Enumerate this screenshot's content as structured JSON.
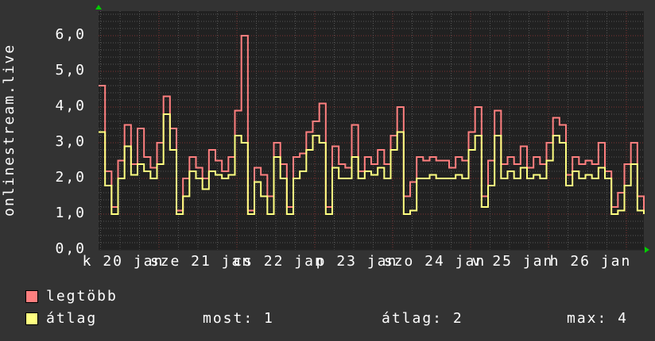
{
  "chart_data": {
    "type": "line",
    "title": "",
    "ylabel": "onlinestream.live",
    "ylim": [
      0,
      6.7
    ],
    "y_ticks": [
      "0,0",
      "1,0",
      "2,0",
      "3,0",
      "4,0",
      "5,0",
      "6,0"
    ],
    "y_tick_values": [
      0,
      1,
      2,
      3,
      4,
      5,
      6
    ],
    "x_tick_labels": [
      "k 20 jan",
      "sze 21 jan",
      "cs 22 jan",
      "p 23 jan",
      "szo 24 jan",
      "v 25 jan",
      "h 26 jan"
    ],
    "x_start": "20 jan 05:00",
    "x_step": "2h",
    "grid": true,
    "legend_position": "bottom",
    "series": [
      {
        "name": "legtöbb",
        "color": "#ff7f7f",
        "values": [
          4.6,
          2.2,
          1.2,
          2.5,
          3.5,
          2.4,
          3.4,
          2.6,
          2.3,
          3.0,
          4.3,
          3.4,
          1.1,
          2.0,
          2.6,
          2.3,
          2.0,
          2.8,
          2.5,
          2.2,
          2.6,
          3.9,
          6.0,
          1.1,
          2.3,
          2.1,
          1.5,
          3.0,
          2.4,
          1.2,
          2.6,
          2.7,
          3.3,
          3.6,
          4.1,
          1.2,
          2.9,
          2.4,
          2.3,
          3.5,
          2.2,
          2.6,
          2.4,
          2.8,
          2.4,
          3.2,
          4.0,
          1.5,
          1.9,
          2.6,
          2.5,
          2.6,
          2.5,
          2.5,
          2.3,
          2.6,
          2.5,
          3.3,
          4.0,
          1.5,
          2.5,
          3.9,
          2.4,
          2.6,
          2.4,
          2.9,
          2.3,
          2.6,
          2.4,
          3.0,
          3.7,
          3.5,
          2.1,
          2.6,
          2.4,
          2.5,
          2.4,
          3.0,
          2.2,
          1.2,
          1.6,
          2.4,
          3.0,
          1.5,
          1.0
        ]
      },
      {
        "name": "átlag",
        "color": "#ffff80",
        "values": [
          3.3,
          1.8,
          1.0,
          2.0,
          2.9,
          2.1,
          2.4,
          2.2,
          2.0,
          2.4,
          3.8,
          2.8,
          1.0,
          1.5,
          2.2,
          2.0,
          1.7,
          2.2,
          2.1,
          2.0,
          2.1,
          3.2,
          3.0,
          1.0,
          1.9,
          1.5,
          1.0,
          2.6,
          2.0,
          1.0,
          2.0,
          2.2,
          2.8,
          3.2,
          3.0,
          1.0,
          2.3,
          2.0,
          2.0,
          2.6,
          2.0,
          2.2,
          2.1,
          2.3,
          2.0,
          2.8,
          3.3,
          1.0,
          1.1,
          2.0,
          2.0,
          2.1,
          2.0,
          2.0,
          2.0,
          2.1,
          2.0,
          2.8,
          3.2,
          1.2,
          1.8,
          3.2,
          2.0,
          2.2,
          2.0,
          2.3,
          2.0,
          2.1,
          2.0,
          2.5,
          3.2,
          3.0,
          1.8,
          2.2,
          2.0,
          2.1,
          2.0,
          2.3,
          2.0,
          1.0,
          1.1,
          1.8,
          2.4,
          1.1,
          1.0
        ]
      }
    ]
  },
  "legend": {
    "max_label": "legtöbb",
    "avg_label": "átlag",
    "most": "most: 1",
    "avg": "átlag: 2",
    "max": "max: 4"
  },
  "colors": {
    "background": "#333333",
    "plot": "#212121",
    "grid_minor": "#555555",
    "grid_major": "#803333",
    "arrow": "#00cc00"
  }
}
